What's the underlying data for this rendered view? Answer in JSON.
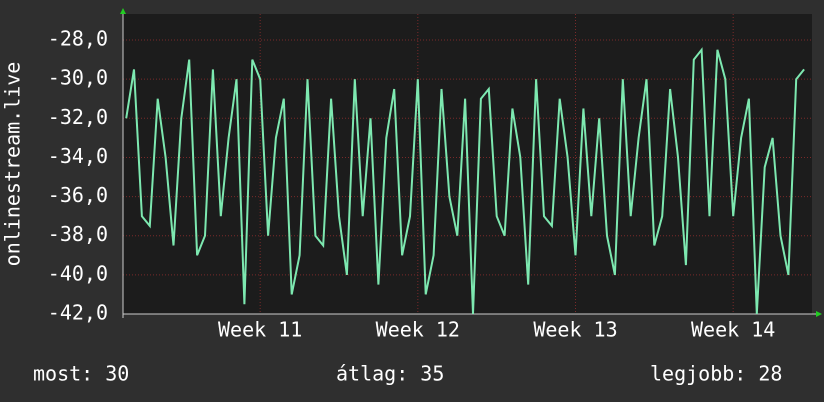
{
  "chart_data": {
    "type": "line",
    "y_label": "onlinestream.live",
    "xlim": [
      10.13,
      14.5
    ],
    "xticks": [
      {
        "value": 11,
        "label": "Week 11"
      },
      {
        "value": 12,
        "label": "Week 12"
      },
      {
        "value": 13,
        "label": "Week 13"
      },
      {
        "value": 14,
        "label": "Week 14"
      }
    ],
    "ylim": [
      -42,
      -26.67
    ],
    "yticks": [
      {
        "value": -42,
        "label": "-42,0"
      },
      {
        "value": -40,
        "label": "-40,0"
      },
      {
        "value": -38,
        "label": "-38,0"
      },
      {
        "value": -36,
        "label": "-36,0"
      },
      {
        "value": -34,
        "label": "-34,0"
      },
      {
        "value": -32,
        "label": "-32,0"
      },
      {
        "value": -30,
        "label": "-30,0"
      },
      {
        "value": -28,
        "label": "-28,0"
      }
    ],
    "grid": true,
    "x": [
      10.15,
      10.2,
      10.25,
      10.3,
      10.35,
      10.4,
      10.45,
      10.5,
      10.55,
      10.6,
      10.65,
      10.7,
      10.75,
      10.8,
      10.85,
      10.9,
      10.95,
      11.0,
      11.05,
      11.1,
      11.15,
      11.2,
      11.25,
      11.3,
      11.35,
      11.4,
      11.45,
      11.5,
      11.55,
      11.6,
      11.65,
      11.7,
      11.75,
      11.8,
      11.85,
      11.9,
      11.95,
      12.0,
      12.05,
      12.1,
      12.15,
      12.2,
      12.25,
      12.3,
      12.35,
      12.4,
      12.45,
      12.5,
      12.55,
      12.6,
      12.65,
      12.7,
      12.75,
      12.8,
      12.85,
      12.9,
      12.95,
      13.0,
      13.05,
      13.1,
      13.15,
      13.2,
      13.25,
      13.3,
      13.35,
      13.4,
      13.45,
      13.5,
      13.55,
      13.6,
      13.65,
      13.7,
      13.75,
      13.8,
      13.85,
      13.9,
      13.95,
      14.0,
      14.05,
      14.1,
      14.15,
      14.2,
      14.25,
      14.3,
      14.35,
      14.4,
      14.45
    ],
    "series": [
      {
        "color": "#7de8b0",
        "values": [
          -32,
          -29.5,
          -37,
          -37.5,
          -31,
          -34,
          -38.5,
          -32,
          -29,
          -39,
          -38,
          -29.5,
          -37,
          -33,
          -30,
          -41.5,
          -29,
          -30,
          -38,
          -33,
          -31,
          -41,
          -39,
          -30,
          -38,
          -38.5,
          -31,
          -37,
          -40,
          -30,
          -37,
          -32,
          -40.5,
          -33,
          -30.5,
          -39,
          -37,
          -30,
          -41,
          -39,
          -30.5,
          -36,
          -38,
          -31,
          -42,
          -31,
          -30.5,
          -37,
          -38,
          -31.5,
          -34,
          -40.5,
          -30,
          -37,
          -37.5,
          -31,
          -34,
          -39,
          -31.5,
          -37,
          -32,
          -38,
          -40,
          -30,
          -37,
          -33,
          -30,
          -38.5,
          -37,
          -30.5,
          -34,
          -39.5,
          -29,
          -28.5,
          -37,
          -28.5,
          -30,
          -37,
          -33,
          -31,
          -42,
          -34.5,
          -33,
          -38,
          -40,
          -30,
          -29.5
        ]
      }
    ],
    "footer": [
      "most: 30",
      "átlag: 35",
      "legjobb: 28"
    ]
  }
}
